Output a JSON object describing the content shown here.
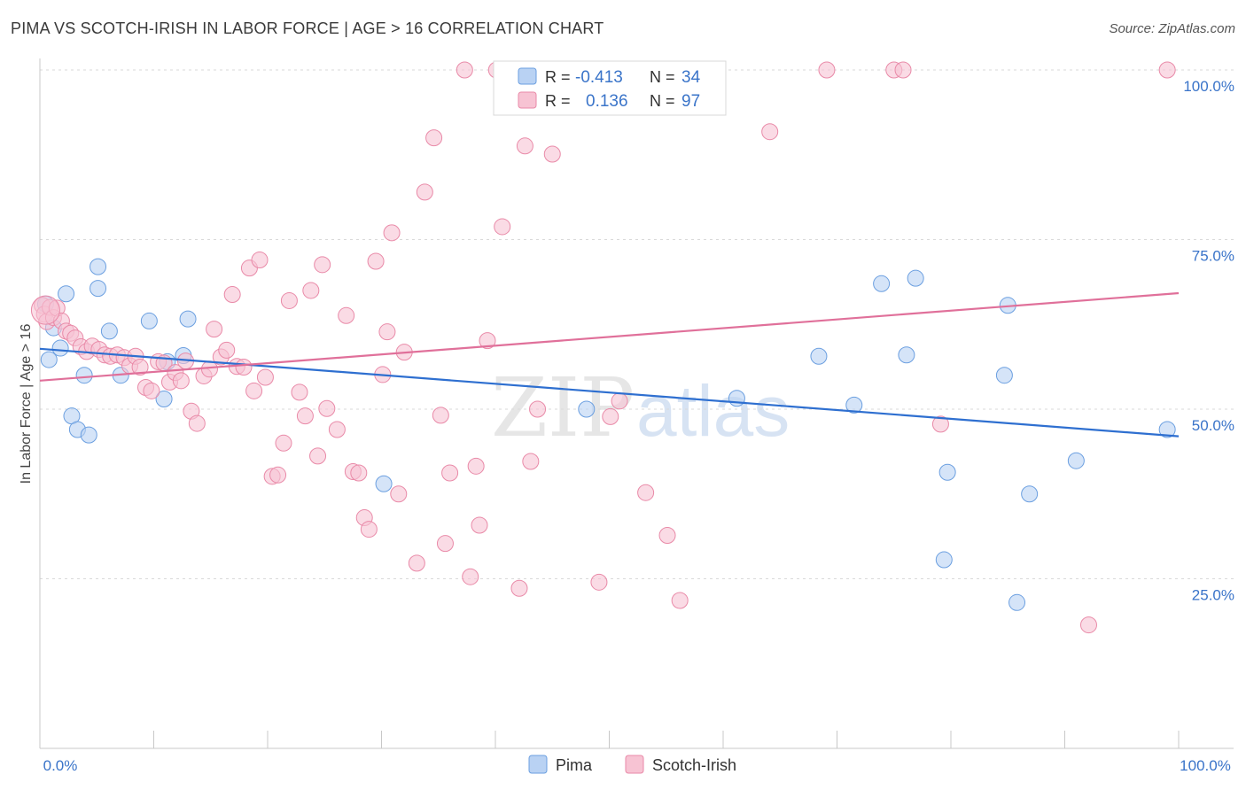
{
  "title": "PIMA VS SCOTCH-IRISH IN LABOR FORCE | AGE > 16 CORRELATION CHART",
  "source": "Source: ZipAtlas.com",
  "watermark": {
    "zip": "ZIP",
    "atlas": "atlas"
  },
  "chart_data": {
    "type": "scatter",
    "title": "PIMA VS SCOTCH-IRISH IN LABOR FORCE | AGE > 16 CORRELATION CHART",
    "xlabel": "",
    "ylabel": "In Labor Force | Age > 16",
    "xlim": [
      0,
      100
    ],
    "ylim": [
      0,
      100
    ],
    "x_tick_labels": {
      "left": "0.0%",
      "right": "100.0%"
    },
    "y_ticks": [
      {
        "value": 100,
        "label": "100.0%"
      },
      {
        "value": 75,
        "label": "75.0%"
      },
      {
        "value": 50,
        "label": "50.0%"
      },
      {
        "value": 25,
        "label": "25.0%"
      }
    ],
    "grid": true,
    "legend_position": "top-center",
    "series": [
      {
        "name": "Pima",
        "color": "#6b9fe0",
        "fill": "#b9d2f3",
        "line_color": "#2e6fd0",
        "R": "-0.413",
        "N": "34",
        "trend": {
          "x": [
            0,
            100
          ],
          "y": [
            58.9,
            46.0
          ]
        },
        "points": [
          [
            0.5,
            65.5
          ],
          [
            0.8,
            57.3
          ],
          [
            1.2,
            62.0
          ],
          [
            1.8,
            59.0
          ],
          [
            2.3,
            67.0
          ],
          [
            2.8,
            49.0
          ],
          [
            3.3,
            47.0
          ],
          [
            3.9,
            55.0
          ],
          [
            4.3,
            46.2
          ],
          [
            5.1,
            71.0
          ],
          [
            5.1,
            67.8
          ],
          [
            6.1,
            61.5
          ],
          [
            7.1,
            55.0
          ],
          [
            9.6,
            63.0
          ],
          [
            10.9,
            51.5
          ],
          [
            11.2,
            57.0
          ],
          [
            12.6,
            57.9
          ],
          [
            13.0,
            63.3
          ],
          [
            30.2,
            39.0
          ],
          [
            48.0,
            50.0
          ],
          [
            61.2,
            51.6
          ],
          [
            68.4,
            57.8
          ],
          [
            71.5,
            50.6
          ],
          [
            73.9,
            68.5
          ],
          [
            76.1,
            58.0
          ],
          [
            76.9,
            69.3
          ],
          [
            79.7,
            40.7
          ],
          [
            79.4,
            27.8
          ],
          [
            85.0,
            65.3
          ],
          [
            84.7,
            55.0
          ],
          [
            85.8,
            21.5
          ],
          [
            86.9,
            37.5
          ],
          [
            91.0,
            42.4
          ],
          [
            99.0,
            47.0
          ]
        ]
      },
      {
        "name": "Scotch-Irish",
        "color": "#e98aa8",
        "fill": "#f7c3d3",
        "line_color": "#e0709a",
        "R": "0.136",
        "N": "97",
        "trend": {
          "x": [
            0,
            100
          ],
          "y": [
            54.2,
            67.1
          ]
        },
        "points": [
          [
            0.2,
            65.3
          ],
          [
            0.4,
            64.0
          ],
          [
            0.6,
            62.9
          ],
          [
            0.9,
            65.0
          ],
          [
            1.2,
            63.5
          ],
          [
            1.5,
            64.9
          ],
          [
            1.9,
            63.0
          ],
          [
            2.3,
            61.5
          ],
          [
            2.7,
            61.2
          ],
          [
            3.1,
            60.5
          ],
          [
            3.6,
            59.2
          ],
          [
            4.1,
            58.5
          ],
          [
            4.6,
            59.3
          ],
          [
            5.2,
            58.8
          ],
          [
            5.7,
            58.0
          ],
          [
            6.2,
            57.8
          ],
          [
            6.8,
            58.0
          ],
          [
            7.4,
            57.6
          ],
          [
            7.9,
            56.4
          ],
          [
            8.4,
            57.8
          ],
          [
            8.8,
            56.2
          ],
          [
            9.3,
            53.2
          ],
          [
            9.8,
            52.7
          ],
          [
            10.4,
            57.0
          ],
          [
            10.9,
            56.8
          ],
          [
            11.4,
            54.0
          ],
          [
            11.9,
            55.4
          ],
          [
            12.4,
            54.2
          ],
          [
            12.8,
            57.1
          ],
          [
            13.3,
            49.7
          ],
          [
            13.8,
            47.9
          ],
          [
            14.4,
            54.9
          ],
          [
            14.9,
            55.9
          ],
          [
            15.3,
            61.8
          ],
          [
            15.9,
            57.7
          ],
          [
            16.4,
            58.7
          ],
          [
            16.9,
            66.9
          ],
          [
            17.3,
            56.3
          ],
          [
            17.9,
            56.2
          ],
          [
            18.4,
            70.8
          ],
          [
            18.8,
            52.7
          ],
          [
            19.3,
            72.0
          ],
          [
            19.8,
            54.7
          ],
          [
            20.4,
            40.1
          ],
          [
            20.9,
            40.3
          ],
          [
            21.4,
            45.0
          ],
          [
            21.9,
            66.0
          ],
          [
            22.8,
            52.5
          ],
          [
            23.3,
            49.0
          ],
          [
            23.8,
            67.5
          ],
          [
            24.4,
            43.1
          ],
          [
            24.8,
            71.3
          ],
          [
            25.2,
            50.1
          ],
          [
            26.1,
            47.0
          ],
          [
            26.9,
            63.8
          ],
          [
            27.5,
            40.8
          ],
          [
            28.0,
            40.6
          ],
          [
            28.5,
            34.0
          ],
          [
            28.9,
            32.3
          ],
          [
            29.5,
            71.8
          ],
          [
            30.1,
            55.1
          ],
          [
            30.5,
            61.4
          ],
          [
            30.9,
            76.0
          ],
          [
            31.5,
            37.5
          ],
          [
            32.0,
            58.4
          ],
          [
            33.1,
            27.3
          ],
          [
            33.8,
            82.0
          ],
          [
            34.6,
            90.0
          ],
          [
            35.2,
            49.1
          ],
          [
            35.6,
            30.2
          ],
          [
            36.0,
            40.6
          ],
          [
            37.3,
            100.0
          ],
          [
            37.8,
            25.3
          ],
          [
            38.3,
            41.6
          ],
          [
            38.6,
            32.9
          ],
          [
            39.3,
            60.1
          ],
          [
            40.1,
            100.0
          ],
          [
            40.6,
            76.9
          ],
          [
            42.1,
            23.6
          ],
          [
            42.6,
            88.8
          ],
          [
            43.1,
            42.3
          ],
          [
            43.7,
            50.0
          ],
          [
            45.0,
            87.6
          ],
          [
            48.1,
            100.0
          ],
          [
            49.1,
            24.5
          ],
          [
            50.1,
            48.9
          ],
          [
            50.9,
            51.2
          ],
          [
            53.2,
            37.7
          ],
          [
            55.1,
            31.4
          ],
          [
            56.2,
            21.8
          ],
          [
            64.1,
            90.9
          ],
          [
            69.1,
            100.0
          ],
          [
            75.0,
            100.0
          ],
          [
            75.8,
            100.0
          ],
          [
            79.1,
            47.8
          ],
          [
            92.1,
            18.2
          ],
          [
            99.0,
            100.0
          ]
        ]
      }
    ]
  },
  "legend_top": {
    "rows": [
      {
        "r_label": "R =",
        "r_value": "-0.413",
        "n_label": "N =",
        "n_value": "34"
      },
      {
        "r_label": "R =",
        "r_value": "0.136",
        "n_label": "N =",
        "n_value": "97"
      }
    ]
  },
  "legend_bottom": {
    "items": [
      "Pima",
      "Scotch-Irish"
    ]
  }
}
